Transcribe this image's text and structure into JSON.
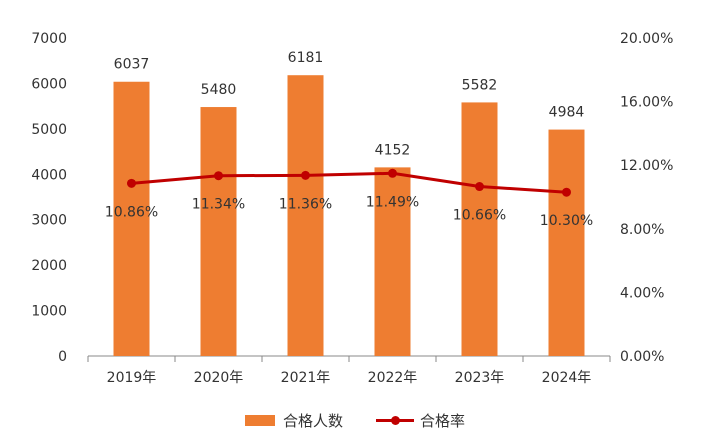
{
  "chart_data": {
    "type": "bar+line",
    "categories": [
      "2019年",
      "2020年",
      "2021年",
      "2022年",
      "2023年",
      "2024年"
    ],
    "series": [
      {
        "name": "合格人数",
        "type": "bar",
        "axis": "left",
        "values": [
          6037,
          5480,
          6181,
          4152,
          5582,
          4984
        ],
        "labels": [
          "6037",
          "5480",
          "6181",
          "4152",
          "5582",
          "4984"
        ],
        "color": "#EE7D31"
      },
      {
        "name": "合格率",
        "type": "line",
        "axis": "right",
        "values": [
          10.86,
          11.34,
          11.36,
          11.49,
          10.66,
          10.3
        ],
        "labels": [
          "10.86%",
          "11.34%",
          "11.36%",
          "11.49%",
          "10.66%",
          "10.30%"
        ],
        "color": "#C00000"
      }
    ],
    "y_left": {
      "ylim": [
        0,
        7000
      ],
      "ticks": [
        "0",
        "1000",
        "2000",
        "3000",
        "4000",
        "5000",
        "6000",
        "7000"
      ]
    },
    "y_right": {
      "ylim": [
        0,
        20
      ],
      "ticks": [
        "0.00%",
        "4.00%",
        "8.00%",
        "12.00%",
        "16.00%",
        "20.00%"
      ]
    },
    "grid": false,
    "legend_position": "bottom"
  }
}
